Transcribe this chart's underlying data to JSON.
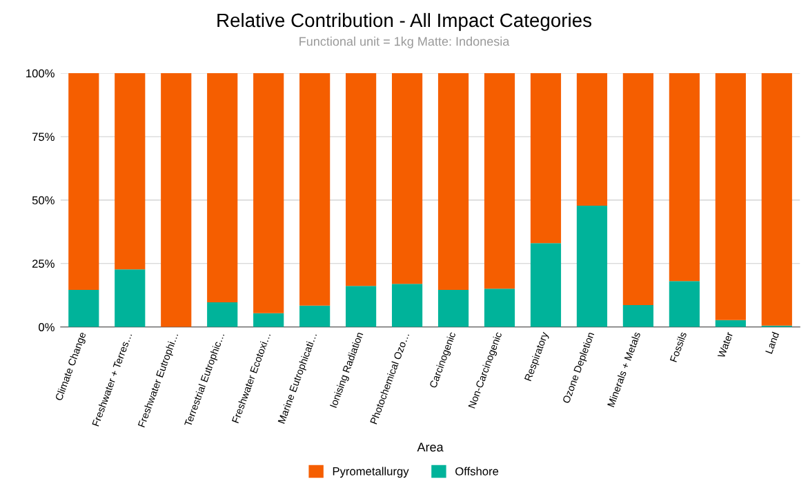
{
  "chart_data": {
    "type": "bar",
    "stacked": true,
    "title": "Relative Contribution - All Impact Categories",
    "subtitle": "Functional unit = 1kg Matte: Indonesia",
    "xlabel": "Area",
    "categories": [
      "Climate Change",
      "Freshwater + Terres…",
      "Freshwater Eutrophi…",
      "Terrestrial Eutrophic…",
      "Freshwater Ecotoxi…",
      "Marine Eutrophicati…",
      "Ionising Radiation",
      "Photochemical Ozo…",
      "Carcinogenic",
      "Non-Carcinogenic",
      "Respiratory",
      "Ozone Depletion",
      "Minerals + Metals",
      "Fossils",
      "Water",
      "Land"
    ],
    "series": [
      {
        "name": "Offshore",
        "color": "#00b39a",
        "values": [
          14.6,
          22.7,
          0,
          9.7,
          5.4,
          8.4,
          16.2,
          17.0,
          14.6,
          15.1,
          33.0,
          47.8,
          8.6,
          18.1,
          2.7,
          0.5
        ]
      },
      {
        "name": "Pyrometallurgy",
        "color": "#f55e00",
        "values": [
          85.4,
          77.3,
          100,
          90.3,
          94.6,
          91.6,
          83.8,
          83.0,
          85.4,
          84.9,
          67.0,
          52.2,
          91.4,
          81.9,
          97.3,
          99.5
        ]
      }
    ],
    "ylim": [
      0,
      100
    ],
    "yticks": [
      {
        "value": 0,
        "label": "0%"
      },
      {
        "value": 25,
        "label": "25%"
      },
      {
        "value": 50,
        "label": "50%"
      },
      {
        "value": 75,
        "label": "75%"
      },
      {
        "value": 100,
        "label": "100%"
      }
    ],
    "grid": "y",
    "legend": "bottom"
  }
}
